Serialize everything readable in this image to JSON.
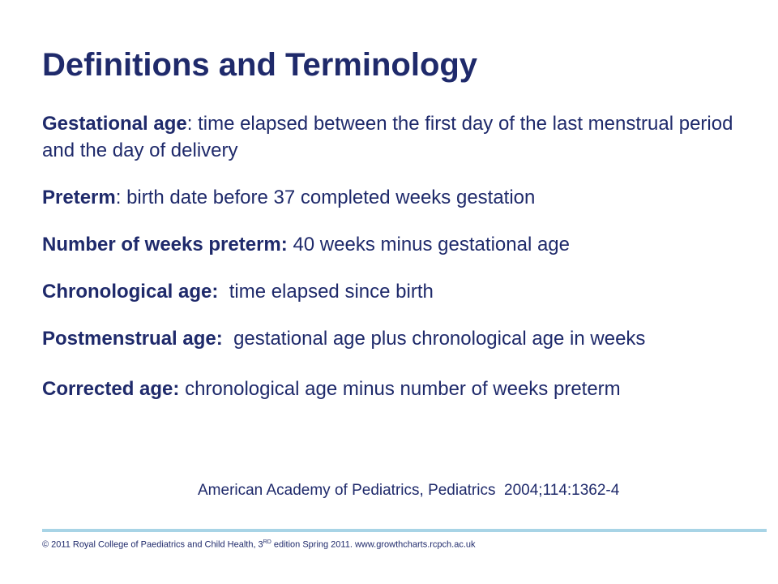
{
  "title": "Definitions and Terminology",
  "definitions": [
    {
      "term": "Gestational age",
      "separator": ": ",
      "text": "time elapsed between the first day of the last menstrual period and the day of delivery"
    },
    {
      "term": "Preterm",
      "separator": ": ",
      "text": "birth date before 37 completed weeks gestation"
    },
    {
      "term": "Number of weeks preterm:",
      "separator": " ",
      "text": "40 weeks minus gestational age"
    },
    {
      "term": "Chronological age:",
      "separator": "  ",
      "text": "time elapsed since birth"
    },
    {
      "term": "Postmenstrual age:",
      "separator": "  ",
      "text": "gestational age plus chronological age in weeks"
    },
    {
      "term": "Corrected age:",
      "separator": " ",
      "text": "chronological age minus number of weeks preterm"
    }
  ],
  "citation": "American Academy of Pediatrics, Pediatrics  2004;114:1362-4",
  "footer": {
    "prefix": "© 2011 Royal College of Paediatrics and Child Health, 3",
    "superscript": "RD",
    "suffix": " edition Spring 2011. www.growthcharts.rcpch.ac.uk"
  },
  "colors": {
    "text": "#1f2a6b",
    "footer_rule": "#a8d4e6",
    "background": "#ffffff"
  }
}
